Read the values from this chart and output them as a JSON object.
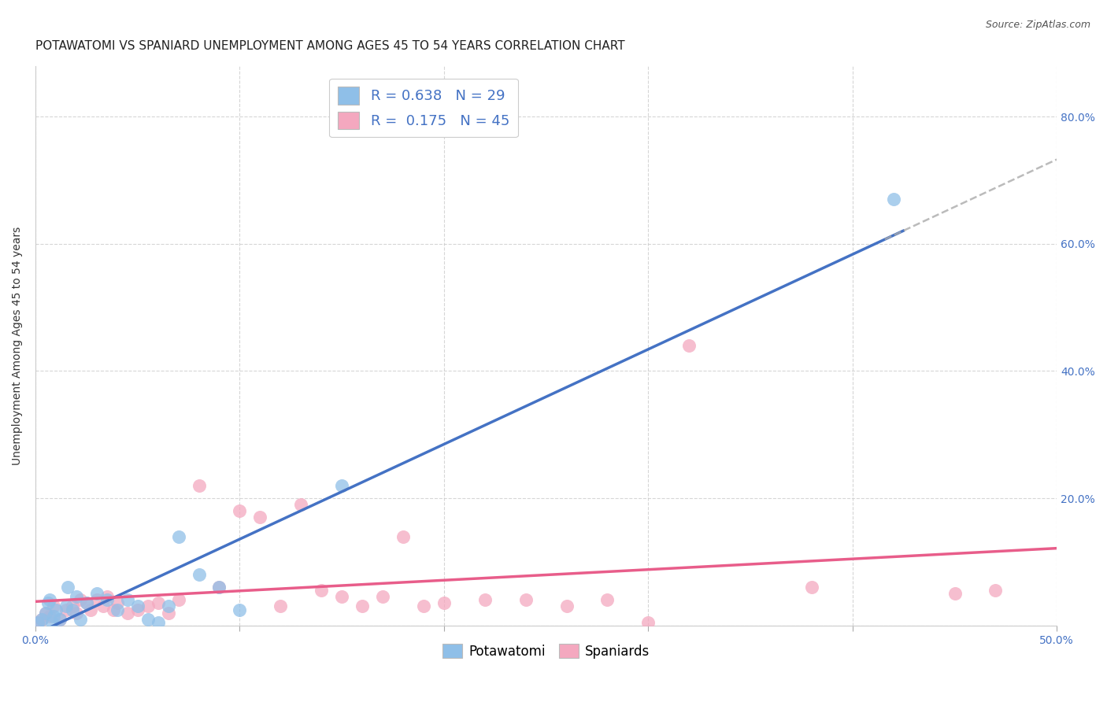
{
  "title": "POTAWATOMI VS SPANIARD UNEMPLOYMENT AMONG AGES 45 TO 54 YEARS CORRELATION CHART",
  "source": "Source: ZipAtlas.com",
  "ylabel": "Unemployment Among Ages 45 to 54 years",
  "xlim": [
    0.0,
    0.5
  ],
  "ylim": [
    0.0,
    0.88
  ],
  "xticks": [
    0.0,
    0.1,
    0.2,
    0.3,
    0.4,
    0.5
  ],
  "xticklabels_show": [
    "0.0%",
    "",
    "",
    "",
    "",
    "50.0%"
  ],
  "yticks": [
    0.0,
    0.2,
    0.4,
    0.6,
    0.8
  ],
  "yticklabels_right": [
    "",
    "20.0%",
    "40.0%",
    "60.0%",
    "80.0%"
  ],
  "potawatomi_x": [
    0.001,
    0.003,
    0.005,
    0.006,
    0.007,
    0.008,
    0.009,
    0.01,
    0.012,
    0.015,
    0.016,
    0.018,
    0.02,
    0.022,
    0.025,
    0.03,
    0.035,
    0.04,
    0.045,
    0.05,
    0.055,
    0.06,
    0.065,
    0.07,
    0.08,
    0.09,
    0.1,
    0.15,
    0.42
  ],
  "potawatomi_y": [
    0.005,
    0.01,
    0.02,
    0.035,
    0.04,
    0.005,
    0.015,
    0.025,
    0.01,
    0.03,
    0.06,
    0.025,
    0.045,
    0.01,
    0.035,
    0.05,
    0.04,
    0.025,
    0.04,
    0.03,
    0.01,
    0.005,
    0.03,
    0.14,
    0.08,
    0.06,
    0.025,
    0.22,
    0.67
  ],
  "spaniards_x": [
    0.001,
    0.003,
    0.005,
    0.007,
    0.009,
    0.012,
    0.015,
    0.018,
    0.02,
    0.022,
    0.025,
    0.027,
    0.03,
    0.033,
    0.035,
    0.038,
    0.04,
    0.045,
    0.05,
    0.055,
    0.06,
    0.065,
    0.07,
    0.08,
    0.09,
    0.1,
    0.11,
    0.12,
    0.13,
    0.14,
    0.15,
    0.16,
    0.17,
    0.18,
    0.19,
    0.2,
    0.22,
    0.24,
    0.26,
    0.28,
    0.3,
    0.32,
    0.38,
    0.45,
    0.47
  ],
  "spaniards_y": [
    0.005,
    0.01,
    0.02,
    0.015,
    0.03,
    0.01,
    0.025,
    0.03,
    0.02,
    0.04,
    0.035,
    0.025,
    0.04,
    0.03,
    0.045,
    0.025,
    0.035,
    0.02,
    0.025,
    0.03,
    0.035,
    0.02,
    0.04,
    0.22,
    0.06,
    0.18,
    0.17,
    0.03,
    0.19,
    0.055,
    0.045,
    0.03,
    0.045,
    0.14,
    0.03,
    0.035,
    0.04,
    0.04,
    0.03,
    0.04,
    0.005,
    0.44,
    0.06,
    0.05,
    0.055
  ],
  "blue_color": "#8fbfe8",
  "pink_color": "#f4a8bf",
  "blue_line_color": "#4472c4",
  "pink_line_color": "#e85d8a",
  "legend_R_potawatomi": "0.638",
  "legend_N_potawatomi": "29",
  "legend_R_spaniards": "0.175",
  "legend_N_spaniards": "45",
  "background_color": "#ffffff",
  "grid_color": "#cccccc",
  "title_fontsize": 11,
  "axis_label_fontsize": 10,
  "tick_fontsize": 10,
  "tick_color": "#4472c4",
  "source_fontsize": 9
}
